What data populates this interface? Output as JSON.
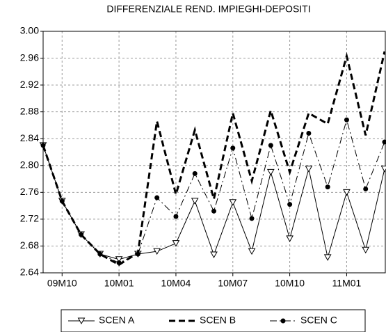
{
  "chart_data": {
    "type": "line",
    "title": "DIFFERENZIALE REND. IMPIEGHI-DEPOSITI",
    "categories": [
      null,
      "09M10",
      null,
      null,
      "10M01",
      null,
      null,
      "10M04",
      null,
      null,
      "10M07",
      null,
      null,
      "10M10",
      null,
      null,
      "11M01",
      null,
      null
    ],
    "series": [
      {
        "name": "SCEN A",
        "color": "#000000",
        "line_style": "solid",
        "marker": "triangle-down",
        "values": [
          2.83,
          2.747,
          2.697,
          2.668,
          2.66,
          2.668,
          2.672,
          2.684,
          2.747,
          2.667,
          2.745,
          2.672,
          2.79,
          2.691,
          2.795,
          2.663,
          2.76,
          2.674,
          2.795
        ]
      },
      {
        "name": "SCEN B",
        "color": "#000000",
        "line_style": "dashed",
        "marker": "none",
        "values": [
          2.83,
          2.747,
          2.697,
          2.668,
          2.652,
          2.67,
          2.866,
          2.757,
          2.853,
          2.75,
          2.878,
          2.777,
          2.882,
          2.79,
          2.878,
          2.862,
          2.963,
          2.845,
          2.97
        ]
      },
      {
        "name": "SCEN C",
        "color": "#000000",
        "line_style": "dashdot",
        "marker": "circle",
        "values": [
          2.83,
          2.747,
          2.697,
          2.668,
          2.655,
          2.668,
          2.752,
          2.724,
          2.788,
          2.732,
          2.826,
          2.721,
          2.83,
          2.742,
          2.848,
          2.768,
          2.868,
          2.765,
          2.835
        ]
      }
    ],
    "ylim": [
      2.64,
      3.0
    ],
    "yticks": [
      2.64,
      2.68,
      2.72,
      2.76,
      {
        "value": 2.8,
        "label": "2.80"
      },
      2.84,
      2.88,
      2.92,
      2.96,
      {
        "value": 3.0,
        "label": "3.00"
      }
    ],
    "grid": true,
    "legend": "bottom"
  }
}
